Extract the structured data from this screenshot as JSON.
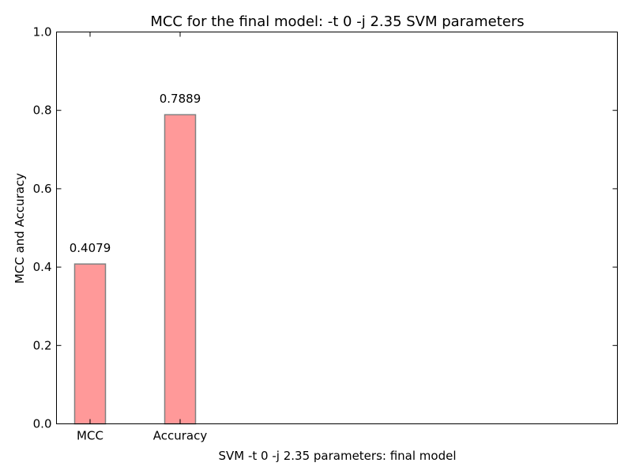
{
  "chart_data": {
    "type": "bar",
    "title": "MCC  for the final model: -t 0 -j 2.35 SVM parameters",
    "xlabel": "SVM -t 0 -j 2.35 parameters: final model",
    "ylabel": "MCC and Accuracy",
    "categories": [
      "MCC",
      "Accuracy"
    ],
    "values": [
      0.4079,
      0.7889
    ],
    "data_labels": [
      "0.4079",
      "0.7889"
    ],
    "ylim": [
      0,
      1.0
    ],
    "yticks": [
      0.0,
      0.2,
      0.4,
      0.6,
      0.8,
      1.0
    ],
    "ytick_labels": [
      "0.0",
      "0.2",
      "0.4",
      "0.6",
      "0.8",
      "1.0"
    ],
    "grid": false,
    "bar_color": "#ff9999",
    "bar_edge_color": "#808080"
  }
}
